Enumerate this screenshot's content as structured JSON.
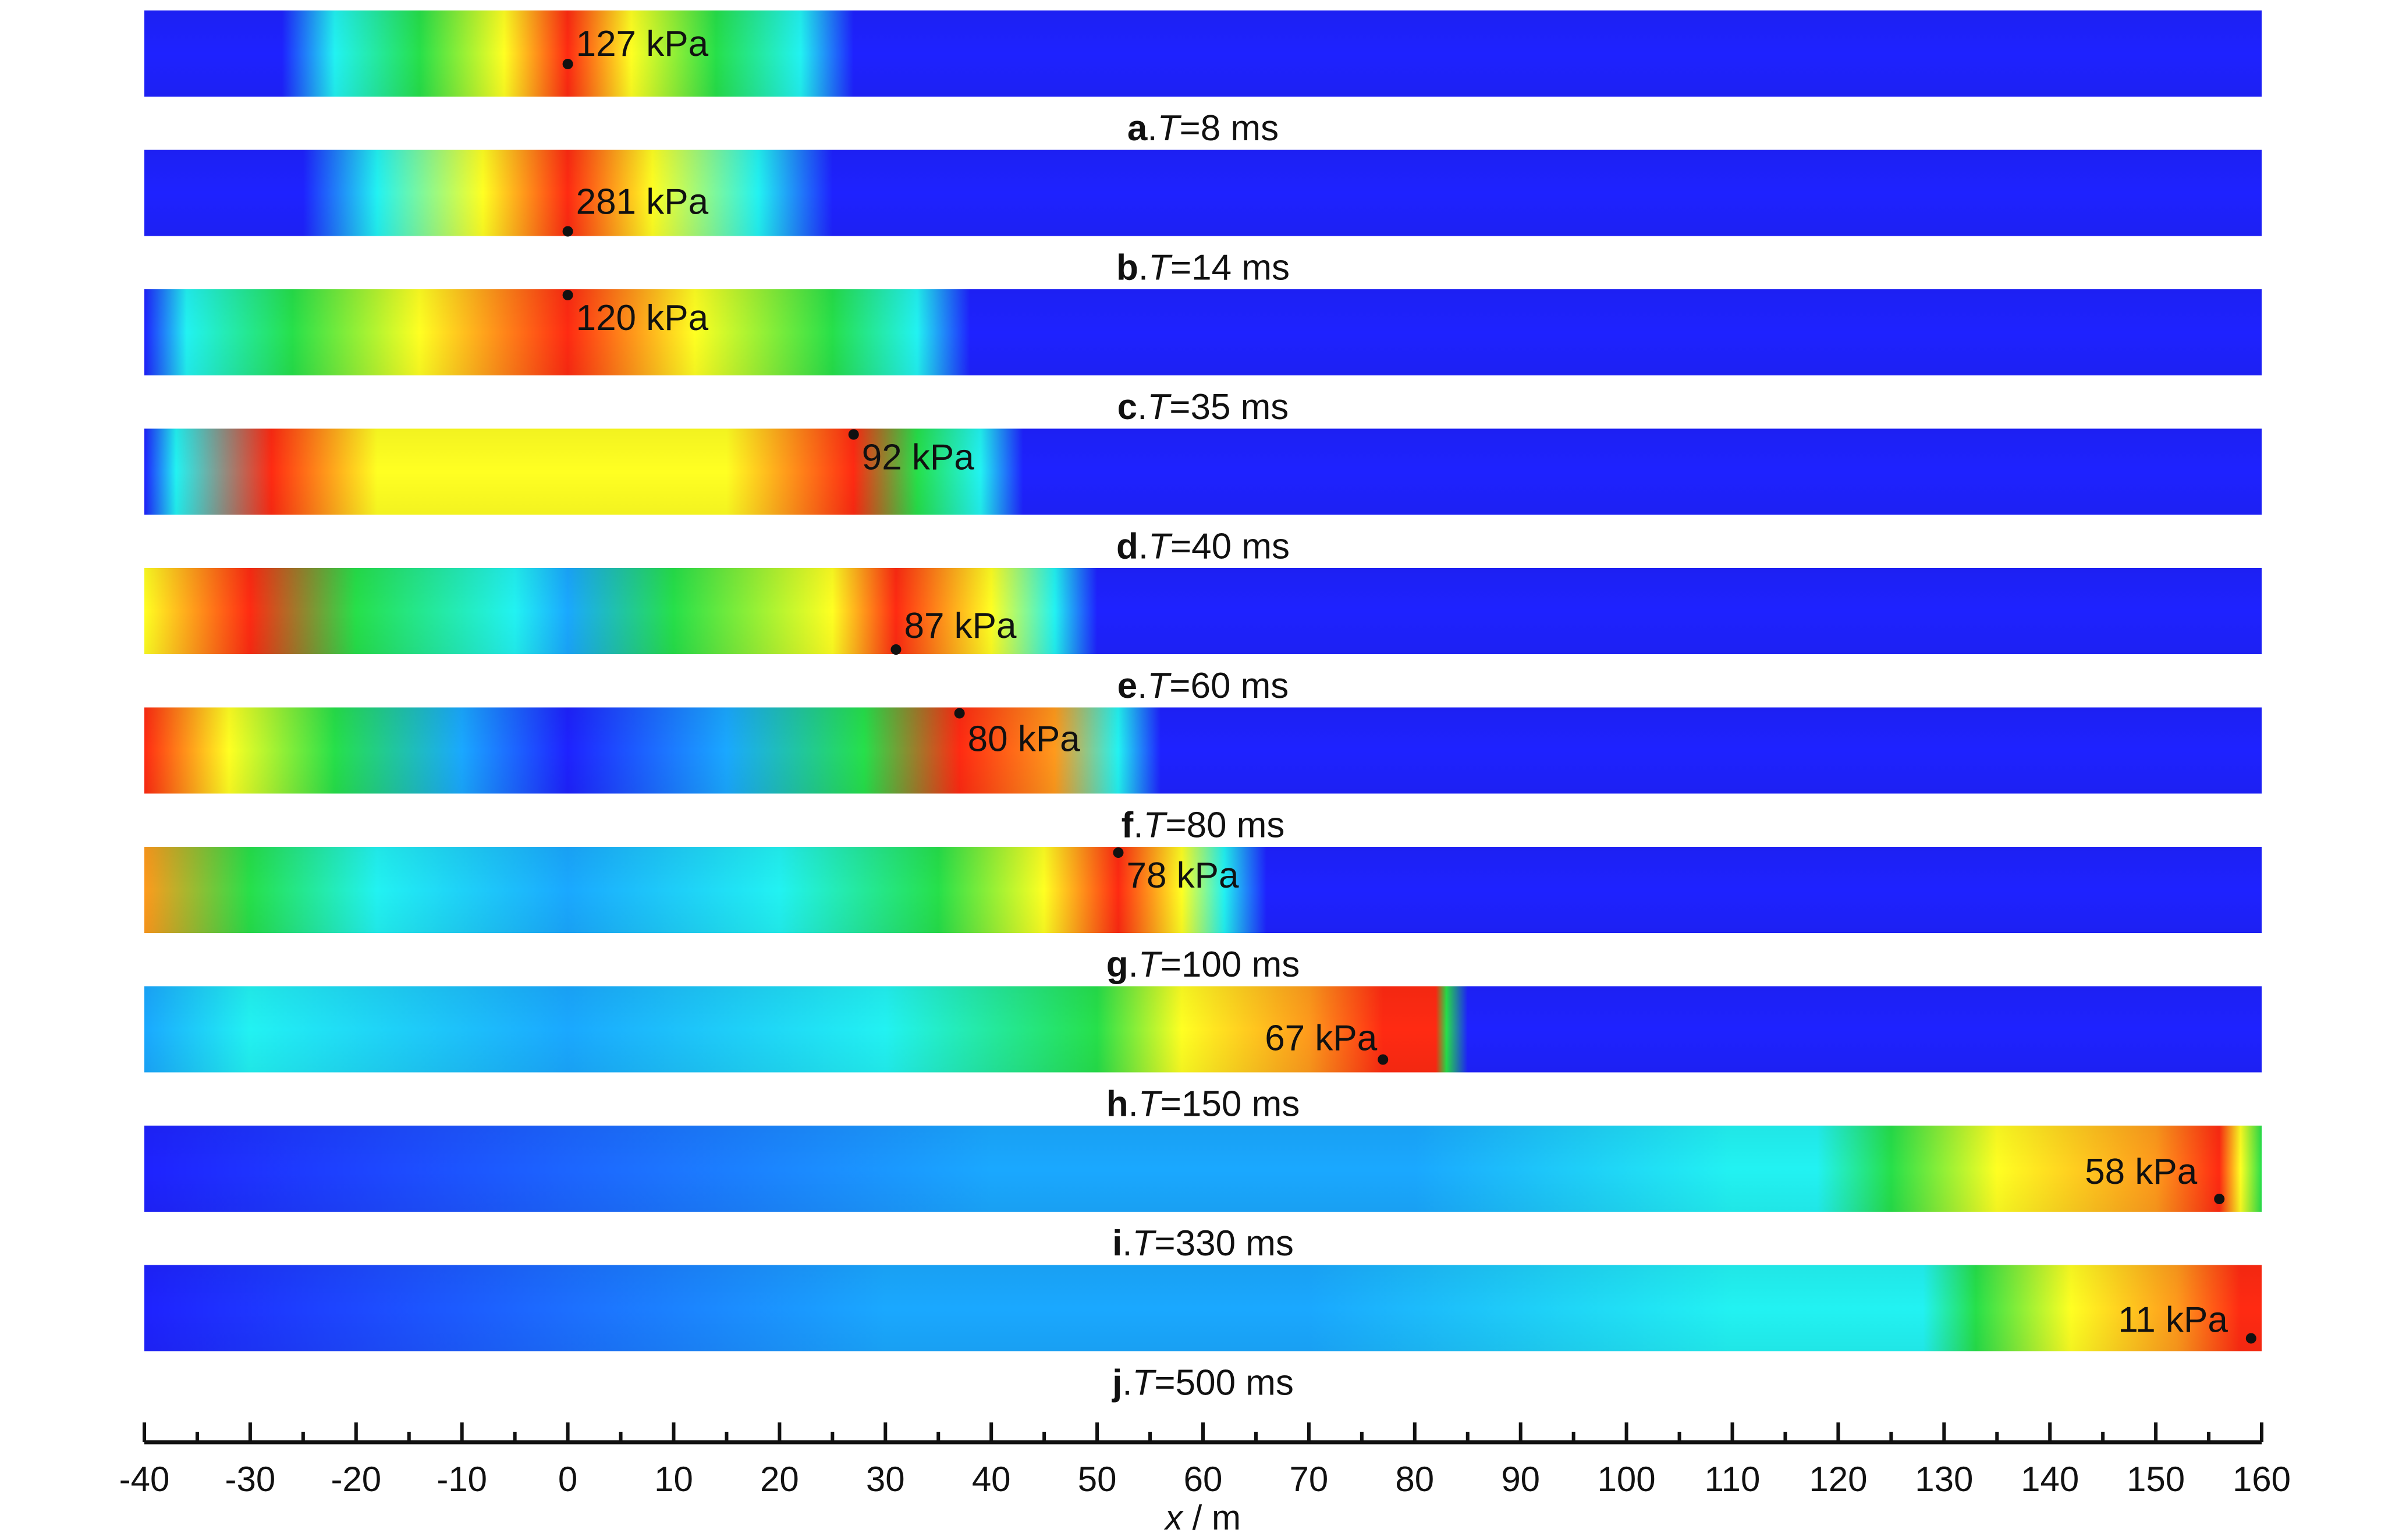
{
  "chart_data": {
    "type": "heatmap",
    "description_axis": {
      "xlabel": "x / m",
      "xlim": [
        -40,
        160
      ]
    },
    "x_ticks": [
      -40,
      -30,
      -20,
      -10,
      0,
      10,
      20,
      30,
      40,
      50,
      60,
      70,
      80,
      90,
      100,
      110,
      120,
      130,
      140,
      150,
      160
    ],
    "colormap": [
      "#1e22ff",
      "#1aa8ff",
      "#22f2f2",
      "#26e04a",
      "#ffff22",
      "#ff9a1c",
      "#ff2a12"
    ],
    "panels": [
      {
        "letter": "a",
        "caption": ".T=8 ms",
        "peak_label": "127 kPa",
        "peak_x": 0,
        "front_x": 25,
        "background": "blue"
      },
      {
        "letter": "b",
        "caption": ".T=14 ms",
        "peak_label": "281 kPa",
        "peak_x": 0,
        "front_x": 22,
        "background": "blue"
      },
      {
        "letter": "c",
        "caption": ".T=35 ms",
        "peak_label": "120 kPa",
        "peak_x": 0,
        "front_x": 33,
        "background": "blue"
      },
      {
        "letter": "d",
        "caption": ".T=40 ms",
        "peak_label": "92 kPa",
        "peak_x": 27,
        "front_x": 39,
        "background": "blue"
      },
      {
        "letter": "e",
        "caption": ".T=60 ms",
        "peak_label": "87 kPa",
        "peak_x": 31,
        "front_x": 47,
        "background": "blue"
      },
      {
        "letter": "f",
        "caption": ".T=80 ms",
        "peak_label": "80 kPa",
        "peak_x": 37,
        "front_x": 53,
        "background": "blue"
      },
      {
        "letter": "g",
        "caption": ".T=100 ms",
        "peak_label": "78 kPa",
        "peak_x": 52,
        "front_x": 62,
        "background": "blue"
      },
      {
        "letter": "h",
        "caption": ".T=150 ms",
        "peak_label": "67 kPa",
        "peak_x": 77,
        "front_x": 84,
        "background": "blue"
      },
      {
        "letter": "i",
        "caption": ".T=330 ms",
        "peak_label": "58 kPa",
        "peak_x": 156,
        "front_x": 160,
        "background": "blue"
      },
      {
        "letter": "j",
        "caption": ".T=500 ms",
        "peak_label": "11 kPa",
        "peak_x": 159,
        "front_x": 160,
        "background": "blue"
      }
    ]
  }
}
